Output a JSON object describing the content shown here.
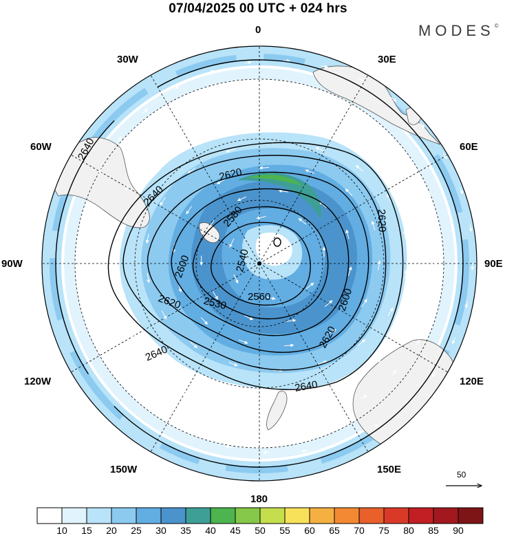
{
  "header": {
    "title": "07/04/2025  00 UTC  + 024 hrs",
    "brand": "MODES",
    "brand_mark": "©"
  },
  "map": {
    "projection": "south-polar-stereographic",
    "longitude_labels": [
      {
        "id": "lon-0",
        "text": "0"
      },
      {
        "id": "lon-30e",
        "text": "30E"
      },
      {
        "id": "lon-60e",
        "text": "60E"
      },
      {
        "id": "lon-90e",
        "text": "90E"
      },
      {
        "id": "lon-120e",
        "text": "120E"
      },
      {
        "id": "lon-150e",
        "text": "150E"
      },
      {
        "id": "lon-180",
        "text": "180"
      },
      {
        "id": "lon-150w",
        "text": "150W"
      },
      {
        "id": "lon-120w",
        "text": "120W"
      },
      {
        "id": "lon-90w",
        "text": "90W"
      },
      {
        "id": "lon-60w",
        "text": "60W"
      },
      {
        "id": "lon-30w",
        "text": "30W"
      }
    ],
    "contour_labels": [
      "2640",
      "2640",
      "2640",
      "2640",
      "2620",
      "2640",
      "2600",
      "2580",
      "2540",
      "2560",
      "2530",
      "2620",
      "2600",
      "2620",
      "2640",
      "2620",
      "2620"
    ],
    "reference_vector": {
      "value": "50"
    },
    "colors": {
      "land": "#f1f1f1",
      "coast": "#555555",
      "contour": "#000000",
      "vector": "#ffffff"
    }
  },
  "colorbar": {
    "labels": [
      "10",
      "15",
      "20",
      "25",
      "30",
      "35",
      "40",
      "45",
      "50",
      "55",
      "60",
      "65",
      "70",
      "75",
      "80",
      "85",
      "90"
    ],
    "colors": [
      "#ffffff",
      "#e1f3fd",
      "#b8e3f9",
      "#8ccaf0",
      "#62ade2",
      "#4b93cc",
      "#3e9f96",
      "#4db44f",
      "#86c849",
      "#c5de4d",
      "#f8e15a",
      "#f6b042",
      "#f38a33",
      "#e9602b",
      "#d93a28",
      "#c11f23",
      "#a1191f",
      "#7d1416"
    ]
  }
}
